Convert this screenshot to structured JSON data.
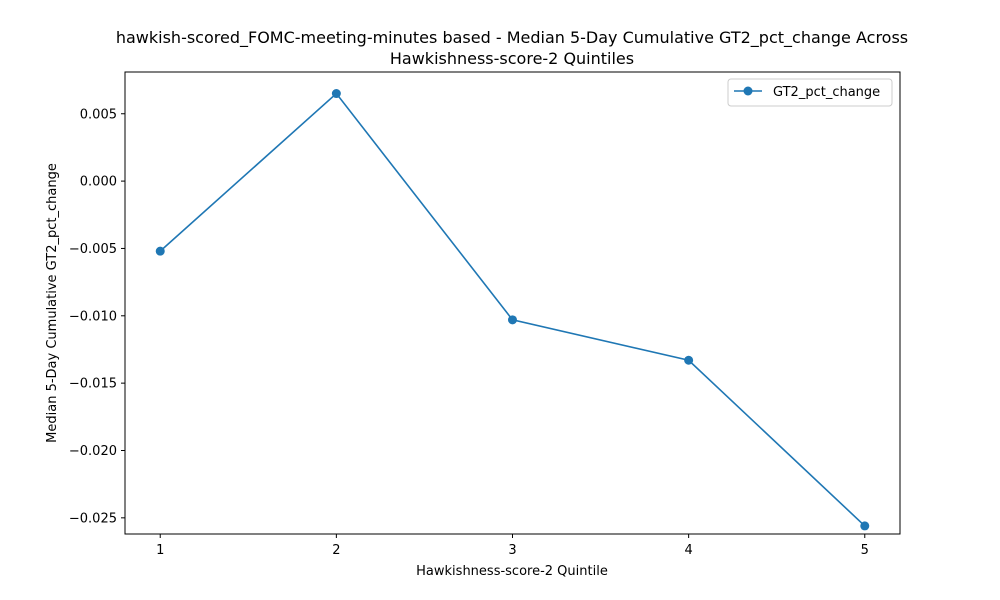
{
  "chart_data": {
    "type": "line",
    "title": [
      "hawkish-scored_FOMC-meeting-minutes based - Median 5-Day Cumulative GT2_pct_change Across",
      "Hawkishness-score-2 Quintiles"
    ],
    "xlabel": "Hawkishness-score-2 Quintile",
    "ylabel": "Median 5-Day Cumulative GT2_pct_change",
    "x": [
      1,
      2,
      3,
      4,
      5
    ],
    "x_tick_labels": [
      "1",
      "2",
      "3",
      "4",
      "5"
    ],
    "y_ticks": [
      0.005,
      0.0,
      -0.005,
      -0.01,
      -0.015,
      -0.02,
      -0.025
    ],
    "y_tick_labels": [
      "0.005",
      "0.000",
      "−0.005",
      "−0.010",
      "−0.015",
      "−0.020",
      "−0.025"
    ],
    "xlim": [
      0.8,
      5.2
    ],
    "ylim": [
      -0.0262,
      0.0081
    ],
    "series": [
      {
        "name": "GT2_pct_change",
        "values": [
          -0.0052,
          0.0065,
          -0.0103,
          -0.0133,
          -0.0256
        ],
        "color": "#1f77b4",
        "marker": "circle"
      }
    ],
    "legend": {
      "position": "top-right",
      "entries": [
        "GT2_pct_change"
      ]
    },
    "grid": false
  }
}
